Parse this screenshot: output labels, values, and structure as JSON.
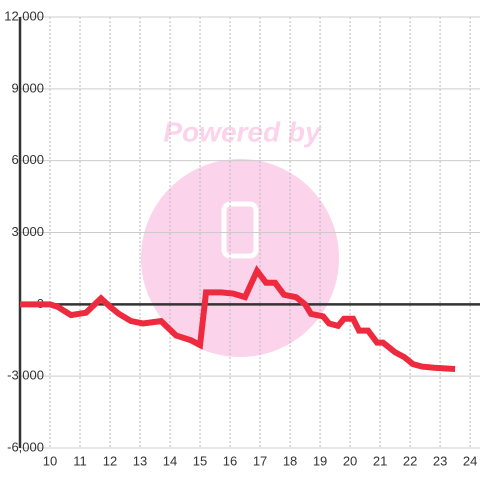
{
  "chart_data": {
    "type": "line",
    "watermark": "Powered by",
    "x": [
      9,
      10,
      10.25,
      10.7,
      11.2,
      11.7,
      12,
      12.3,
      12.7,
      13.1,
      13.7,
      14.2,
      14.7,
      15,
      15.2,
      15.7,
      16.1,
      16.5,
      16.9,
      17.2,
      17.5,
      17.8,
      18.2,
      18.5,
      18.7,
      19.1,
      19.3,
      19.6,
      19.8,
      20.1,
      20.3,
      20.6,
      20.9,
      21.1,
      21.5,
      21.8,
      22.1,
      22.4,
      22.8,
      23.5
    ],
    "series": [
      {
        "color": "#ee2a3e",
        "values": [
          0,
          0,
          -100,
          -450,
          -350,
          250,
          -100,
          -400,
          -700,
          -800,
          -700,
          -1300,
          -1500,
          -1700,
          500,
          500,
          450,
          300,
          1400,
          900,
          900,
          400,
          300,
          0,
          -400,
          -500,
          -800,
          -900,
          -600,
          -600,
          -1100,
          -1100,
          -1600,
          -1600,
          -2000,
          -2200,
          -2500,
          -2600,
          -2650,
          -2700
        ]
      }
    ],
    "xlim": [
      9,
      24.33
    ],
    "xticks": [
      10,
      11,
      12,
      13,
      14,
      15,
      16,
      17,
      18,
      19,
      20,
      21,
      22,
      23,
      24
    ],
    "ylim": [
      -6000,
      12000
    ],
    "yticks": [
      {
        "value": -6000,
        "label": "-6,000"
      },
      {
        "value": -3000,
        "label": "-3,000"
      },
      0,
      {
        "value": 3000,
        "label": "3,000"
      },
      {
        "value": 6000,
        "label": "6,000"
      },
      {
        "value": 9000,
        "label": "9,000"
      },
      {
        "value": 12000,
        "label": "12,000"
      }
    ],
    "grid": true
  }
}
